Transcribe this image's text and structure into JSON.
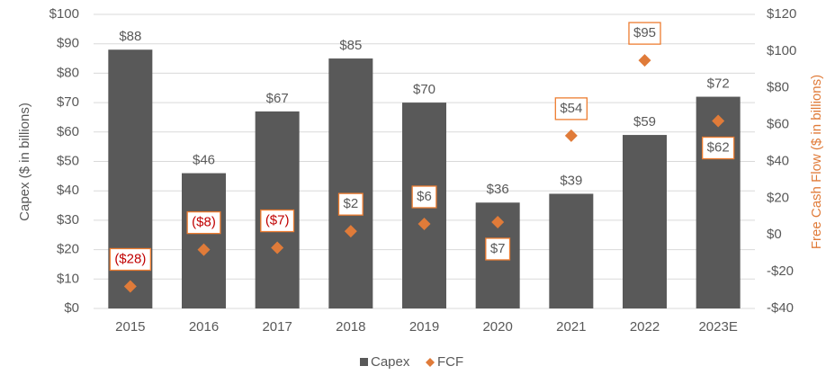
{
  "chart_data": {
    "type": "bar",
    "categories": [
      "2015",
      "2016",
      "2017",
      "2018",
      "2019",
      "2020",
      "2021",
      "2022",
      "2023E"
    ],
    "y_label": "Capex ($ in billions)",
    "y2_label": "Free Cash Flow ($ in billions)",
    "series": [
      {
        "name": "Capex",
        "color": "#595959",
        "values": [
          88,
          46,
          67,
          85,
          70,
          36,
          39,
          59,
          72
        ],
        "value_labels": [
          "$88",
          "$46",
          "$67",
          "$85",
          "$70",
          "$36",
          "$39",
          "$59",
          "$72"
        ]
      },
      {
        "name": "FCF",
        "color": "#e07b39",
        "axis": "y2",
        "marker": "diamond",
        "values": [
          -28,
          -8,
          -7,
          2,
          6,
          7,
          54,
          95,
          62
        ],
        "value_labels": [
          "($28)",
          "($8)",
          "($7)",
          "$2",
          "$6",
          "$7",
          "$54",
          "$95",
          "$62"
        ]
      }
    ],
    "ylim": [
      0,
      100
    ],
    "yticks": [
      {
        "value": 0,
        "label": "$0"
      },
      {
        "value": 10,
        "label": "$10"
      },
      {
        "value": 20,
        "label": "$20"
      },
      {
        "value": 30,
        "label": "$30"
      },
      {
        "value": 40,
        "label": "$40"
      },
      {
        "value": 50,
        "label": "$50"
      },
      {
        "value": 60,
        "label": "$60"
      },
      {
        "value": 70,
        "label": "$70"
      },
      {
        "value": 80,
        "label": "$80"
      },
      {
        "value": 90,
        "label": "$90"
      },
      {
        "value": 100,
        "label": "$100"
      }
    ],
    "y2lim": [
      -40,
      120
    ],
    "y2ticks": [
      {
        "value": -40,
        "label": "-$40"
      },
      {
        "value": -20,
        "label": "-$20"
      },
      {
        "value": 0,
        "label": "$0"
      },
      {
        "value": 20,
        "label": "$20"
      },
      {
        "value": 40,
        "label": "$40"
      },
      {
        "value": 60,
        "label": "$60"
      },
      {
        "value": 80,
        "label": "$80"
      },
      {
        "value": 100,
        "label": "$100"
      },
      {
        "value": 120,
        "label": "$120"
      }
    ],
    "grid": true,
    "legend": "bottom"
  }
}
